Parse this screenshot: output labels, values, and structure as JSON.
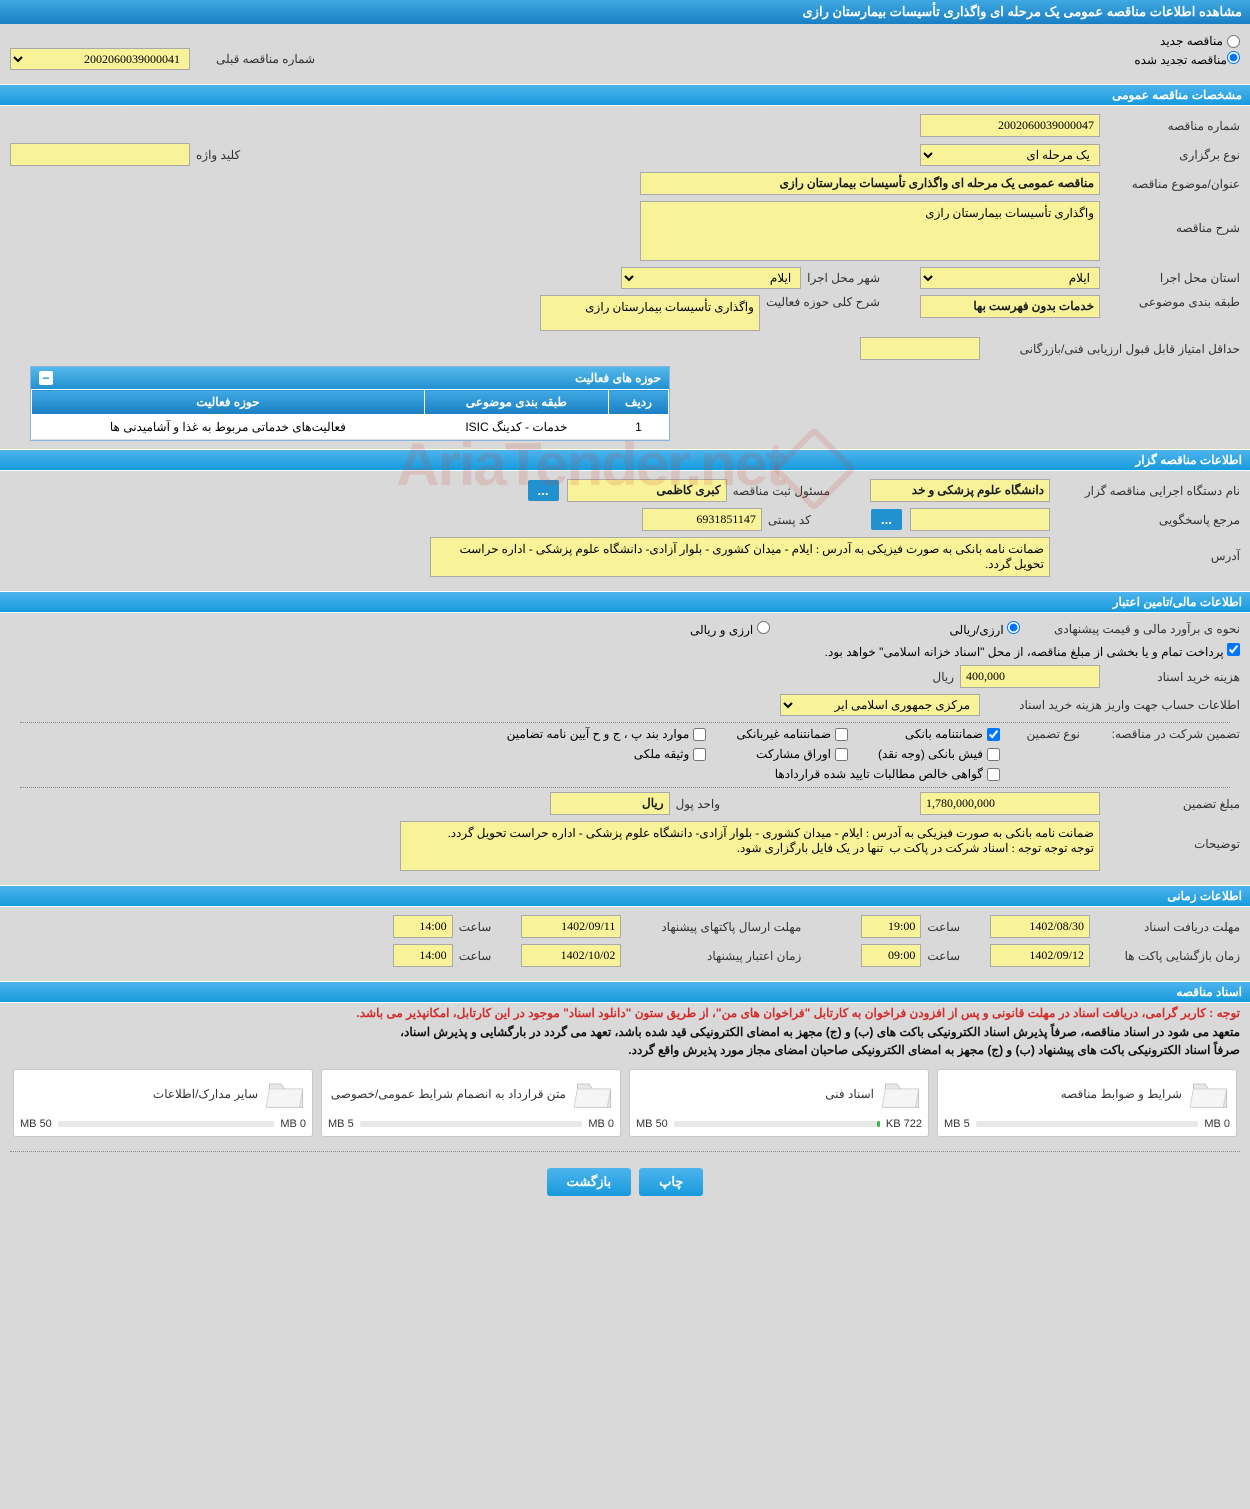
{
  "page_title": "مشاهده اطلاعات مناقصه عمومی یک مرحله ای واگذاری تأسیسات بیمارستان رازی",
  "renewal": {
    "new_tender": "مناقصه جدید",
    "renewed_tender": "مناقصه تجدید شده",
    "prev_number_label": "شماره مناقصه قبلی",
    "prev_number": "2002060039000041"
  },
  "sections": {
    "general_spec": "مشخصات مناقصه عمومی",
    "organizer": "اطلاعات مناقصه گزار",
    "financial": "اطلاعات مالی/تامین اعتبار",
    "timing": "اطلاعات زمانی",
    "documents": "اسناد مناقصه"
  },
  "general": {
    "tender_number_label": "شماره مناقصه",
    "tender_number": "2002060039000047",
    "type_label": "نوع برگزاری",
    "type_value": "یک مرحله ای",
    "keyword_label": "کلید واژه",
    "keyword": "",
    "title_label": "عنوان/موضوع مناقصه",
    "title": "مناقصه عمومی یک مرحله ای واگذاری تأسیسات بیمارستان رازی",
    "description_label": "شرح مناقصه",
    "description": "واگذاری تأسیسات بیمارستان رازی",
    "province_label": "استان محل اجرا",
    "province": "ایلام",
    "city_label": "شهر محل اجرا",
    "city": "ایلام",
    "category_label": "طبقه بندی موضوعی",
    "category": "خدمات بدون فهرست بها",
    "activity_desc_label": "شرح کلی حوزه فعالیت",
    "activity_desc": "واگذاری تأسیسات بیمارستان رازی",
    "min_score_label": "حداقل امتیاز قابل قبول ارزیابی فنی/بازرگانی",
    "min_score": ""
  },
  "activity_table": {
    "header": "حوزه های فعالیت",
    "cols": {
      "row": "ردیف",
      "category": "طبقه بندی موضوعی",
      "activity": "حوزه فعالیت"
    },
    "rows": [
      {
        "idx": "1",
        "category": "خدمات - کدینگ ISIC",
        "activity": "فعالیت‌های خدماتی مربوط به غذا و آشامیدنی ها"
      }
    ]
  },
  "organizer": {
    "org_name_label": "نام دستگاه اجرایی مناقصه گزار",
    "org_name": "دانشگاه علوم پزشکی و خد",
    "reg_officer_label": "مسئول ثبت مناقصه",
    "reg_officer": "کبری کاظمی",
    "contact_label": "مرجع پاسخگویی",
    "contact": "",
    "postal_label": "کد پستی",
    "postal": "6931851147",
    "address_label": "آدرس",
    "address": "ضمانت نامه بانکی به صورت فیزیکی به آدرس : ایلام - میدان کشوری - بلوار آزادی- دانشگاه علوم پزشکی - اداره حراست تحویل گردد."
  },
  "financial": {
    "estimate_label": "نحوه ی برآورد مالی و قیمت پیشنهادی",
    "currency_rial": "ارزی/ریالی",
    "currency_foreign": "ارزی و ریالی",
    "payment_note": "پرداخت تمام و یا بخشی از مبلغ مناقصه، از محل \"اسناد خزانه اسلامی\" خواهد بود.",
    "doc_cost_label": "هزینه خرید اسناد",
    "doc_cost": "400,000",
    "doc_cost_unit": "ریال",
    "account_label": "اطلاعات حساب جهت واریز هزینه خرید اسناد",
    "account": "مرکزی جمهوری اسلامی ایر",
    "guarantee_section_label": "تضمین شرکت در مناقصه:",
    "guarantee_type_label": "نوع تضمین",
    "guarantee_opts": {
      "bank": "ضمانتنامه بانکی",
      "nonbank": "ضمانتنامه غیربانکی",
      "regulation": "موارد بند پ ، ج و ح آیین نامه تضامین",
      "cash": "فیش بانکی (وجه نقد)",
      "securities": "اوراق مشارکت",
      "property": "وثیقه ملکی",
      "receivables": "گواهی خالص مطالبات تایید شده قراردادها"
    },
    "guarantee_amount_label": "مبلغ تضمین",
    "guarantee_amount": "1,780,000,000",
    "money_unit_label": "واحد پول",
    "money_unit": "ریال",
    "notes_label": "توضیحات",
    "notes": "ضمانت نامه بانکی به صورت فیزیکی به آدرس : ایلام - میدان کشوری - بلوار آزادی- دانشگاه علوم پزشکی - اداره حراست تحویل گردد.\nتوجه توجه توجه : اسناد شرکت در پاکت ب  تنها در یک فایل بارگزاری شود."
  },
  "timing": {
    "receive_deadline_label": "مهلت دریافت اسناد",
    "receive_deadline_date": "1402/08/30",
    "time_label": "ساعت",
    "receive_deadline_time": "19:00",
    "submit_deadline_label": "مهلت ارسال پاکتهای پیشنهاد",
    "submit_deadline_date": "1402/09/11",
    "submit_deadline_time": "14:00",
    "opening_label": "زمان بازگشایی پاکت ها",
    "opening_date": "1402/09/12",
    "opening_time": "09:00",
    "validity_label": "زمان اعتبار پیشنهاد",
    "validity_date": "1402/10/02",
    "validity_time": "14:00"
  },
  "documents": {
    "warning": "توجه : کاربر گرامی، دریافت اسناد در مهلت قانونی و پس از افزودن فراخوان به کارتابل \"فراخوان های من\"، از طریق ستون \"دانلود اسناد\" موجود در این کارتابل، امکانپذیر می باشد.",
    "info1": "متعهد می شود در اسناد مناقصه، صرفاً پذیرش اسناد الکترونیکی باکت های (ب) و (ج) مجهز به امضای الکترونیکی قید شده باشد، تعهد می گردد در بارگشایی و پذیرش اسناد،",
    "info2": "صرفاً اسناد الکترونیکی باکت های پیشنهاد (ب) و (ج) مجهز به امضای الکترونیکی صاحبان امضای مجاز مورد پذیرش واقع گردد.",
    "tiles": [
      {
        "label": "شرایط و ضوابط مناقصه",
        "used": "0 MB",
        "total": "5 MB",
        "pct": 0
      },
      {
        "label": "اسناد فنی",
        "used": "722 KB",
        "total": "50 MB",
        "pct": 1.4
      },
      {
        "label": "متن قرارداد به انضمام شرایط عمومی/خصوصی",
        "used": "0 MB",
        "total": "5 MB",
        "pct": 0
      },
      {
        "label": "سایر مدارک/اطلاعات",
        "used": "0 MB",
        "total": "50 MB",
        "pct": 0
      }
    ]
  },
  "buttons": {
    "print": "چاپ",
    "back": "بازگشت",
    "ellipsis": "..."
  },
  "watermark": "AriaTender.net",
  "colors": {
    "header_blue_top": "#4db4ee",
    "header_blue_bottom": "#179adc",
    "page_bg": "#d9d9d9",
    "input_yellow": "#f8f398",
    "warning_red": "#d42b2b",
    "progress_green": "#3ab54a"
  }
}
